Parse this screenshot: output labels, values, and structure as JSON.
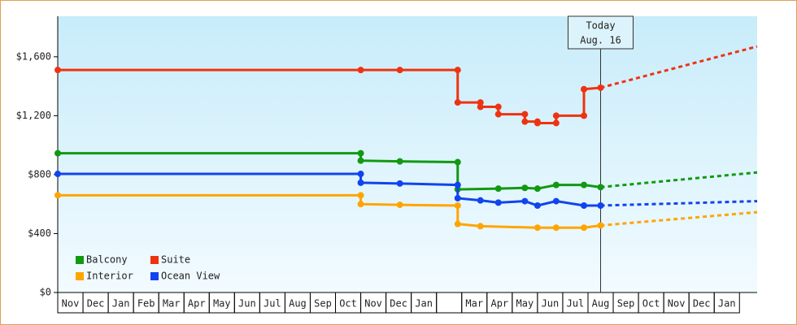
{
  "chart_data": {
    "type": "line",
    "categories": [
      "Nov",
      "Dec",
      "Jan",
      "Feb",
      "Mar",
      "Apr",
      "May",
      "Jun",
      "Jul",
      "Aug",
      "Sep",
      "Oct",
      "Nov",
      "Dec",
      "Jan",
      null,
      "Mar",
      "Apr",
      "May",
      "Jun",
      "Jul",
      "Aug",
      "Sep",
      "Oct",
      "Nov",
      "Dec",
      "Jan"
    ],
    "xlim": [
      0,
      27.7
    ],
    "ylim": [
      0,
      1875
    ],
    "yticks": [
      {
        "value": 0,
        "label": "$0"
      },
      {
        "value": 400,
        "label": "$400"
      },
      {
        "value": 800,
        "label": "$800"
      },
      {
        "value": 1200,
        "label": "$1,200"
      },
      {
        "value": 1600,
        "label": "$1,600"
      }
    ],
    "legend": "lower left",
    "annotation": {
      "x": 21.5,
      "lines": [
        "Today",
        "Aug. 16"
      ]
    },
    "series": [
      {
        "name": "Balcony",
        "color": "#119911",
        "x": [
          0,
          12,
          12,
          13.55,
          15.84,
          15.84,
          17.45,
          18.5,
          19,
          19.74,
          20.84,
          21.5
        ],
        "values": [
          945,
          945,
          895,
          890,
          885,
          700,
          705,
          710,
          705,
          730,
          730,
          715
        ],
        "forecast": {
          "x": [
            21.5,
            27.7
          ],
          "values": [
            715,
            815
          ]
        }
      },
      {
        "name": "Suite",
        "color": "#ee3311",
        "x": [
          0,
          12,
          13.55,
          15.84,
          15.84,
          16.74,
          16.74,
          17.45,
          17.45,
          18.5,
          18.5,
          19,
          19,
          19.74,
          19.74,
          20.84,
          20.84,
          21.5
        ],
        "values": [
          1510,
          1510,
          1510,
          1510,
          1290,
          1290,
          1260,
          1260,
          1210,
          1210,
          1160,
          1160,
          1150,
          1150,
          1200,
          1200,
          1380,
          1390
        ],
        "forecast": {
          "x": [
            21.5,
            27.7
          ],
          "values": [
            1390,
            1670
          ]
        }
      },
      {
        "name": "Interior",
        "color": "#ffa500",
        "x": [
          0,
          12,
          12,
          13.55,
          15.84,
          15.84,
          16.74,
          19,
          19.74,
          20.84,
          21.5
        ],
        "values": [
          660,
          660,
          600,
          595,
          590,
          465,
          450,
          440,
          440,
          440,
          455
        ],
        "forecast": {
          "x": [
            21.5,
            27.7
          ],
          "values": [
            455,
            545
          ]
        }
      },
      {
        "name": "Ocean View",
        "color": "#1144ee",
        "x": [
          0,
          12,
          12,
          13.55,
          15.84,
          15.84,
          16.74,
          17.45,
          18.5,
          19,
          19.74,
          20.84,
          21.5
        ],
        "values": [
          805,
          805,
          745,
          740,
          730,
          640,
          625,
          610,
          620,
          590,
          620,
          590,
          590
        ],
        "forecast": {
          "x": [
            21.5,
            27.7
          ],
          "values": [
            590,
            620
          ]
        }
      }
    ]
  }
}
